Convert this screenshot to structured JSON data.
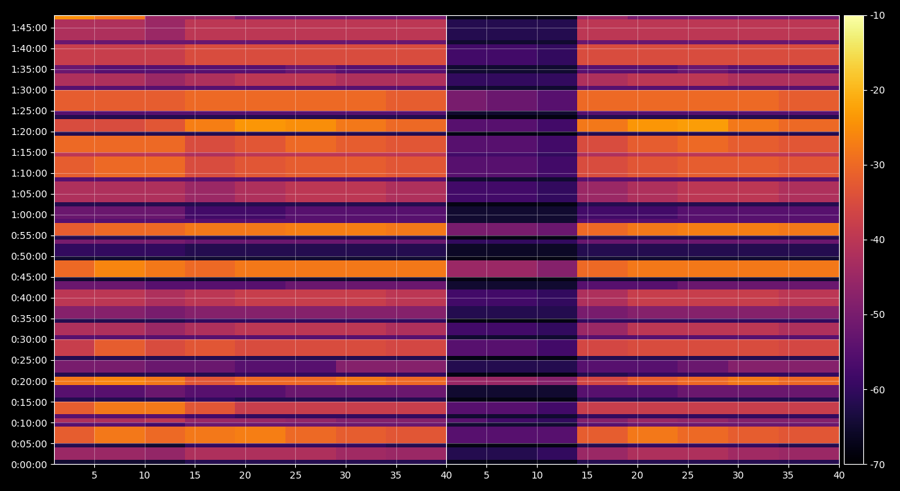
{
  "chart_data": {
    "type": "heatmap",
    "color": "inferno",
    "grid": true,
    "xlim": [
      1,
      40
    ],
    "xticks": [
      5,
      10,
      15,
      20,
      25,
      30,
      35,
      40
    ],
    "ylim": [
      0,
      6480
    ],
    "yticks": [
      {
        "value": 0,
        "label": "0:00:00"
      },
      {
        "value": 300,
        "label": "0:05:00"
      },
      {
        "value": 600,
        "label": "0:10:00"
      },
      {
        "value": 900,
        "label": "0:15:00"
      },
      {
        "value": 1200,
        "label": "0:20:00"
      },
      {
        "value": 1500,
        "label": "0:25:00"
      },
      {
        "value": 1800,
        "label": "0:30:00"
      },
      {
        "value": 2100,
        "label": "0:35:00"
      },
      {
        "value": 2400,
        "label": "0:40:00"
      },
      {
        "value": 2700,
        "label": "0:45:00"
      },
      {
        "value": 3000,
        "label": "0:50:00"
      },
      {
        "value": 3300,
        "label": "0:55:00"
      },
      {
        "value": 3600,
        "label": "1:00:00"
      },
      {
        "value": 3900,
        "label": "1:05:00"
      },
      {
        "value": 4200,
        "label": "1:10:00"
      },
      {
        "value": 4500,
        "label": "1:15:00"
      },
      {
        "value": 4800,
        "label": "1:20:00"
      },
      {
        "value": 5100,
        "label": "1:25:00"
      },
      {
        "value": 5400,
        "label": "1:30:00"
      },
      {
        "value": 5700,
        "label": "1:35:00"
      },
      {
        "value": 6000,
        "label": "1:40:00"
      },
      {
        "value": 6300,
        "label": "1:45:00"
      }
    ],
    "x_edges": [
      1,
      5,
      10,
      14,
      19,
      24,
      29,
      34,
      40
    ],
    "y_edges": [
      0,
      60,
      240,
      300,
      540,
      600,
      660,
      720,
      900,
      960,
      1140,
      1260,
      1320,
      1500,
      1560,
      1800,
      1860,
      2040,
      2100,
      2280,
      2520,
      2640,
      2700,
      2940,
      3000,
      3180,
      3240,
      3300,
      3480,
      3540,
      3720,
      3780,
      4080,
      4140,
      4440,
      4500,
      4740,
      4800,
      4980,
      5040,
      5100,
      5400,
      5460,
      5640,
      5760,
      6060,
      6120,
      6420,
      6480
    ],
    "colorbar": {
      "range": [
        -70,
        -10
      ],
      "ticks": [
        -70,
        -60,
        -50,
        -40,
        -30,
        -20,
        -10
      ]
    },
    "panels": [
      {
        "cells": [
          [
            -65,
            -65,
            -65,
            -62,
            -62,
            -62,
            -62,
            -62
          ],
          [
            -45,
            -45,
            -46,
            -42,
            -42,
            -42,
            -44,
            -45
          ],
          [
            -62,
            -63,
            -65,
            -60,
            -60,
            -60,
            -60,
            -62
          ],
          [
            -32,
            -28,
            -30,
            -28,
            -27,
            -30,
            -32,
            -33
          ],
          [
            -55,
            -55,
            -58,
            -52,
            -52,
            -52,
            -52,
            -52
          ],
          [
            -42,
            -42,
            -40,
            -45,
            -45,
            -46,
            -48,
            -48
          ],
          [
            -55,
            -55,
            -55,
            -58,
            -60,
            -60,
            -60,
            -60
          ],
          [
            -32,
            -28,
            -28,
            -33,
            -38,
            -38,
            -38,
            -38
          ],
          [
            -62,
            -62,
            -62,
            -60,
            -62,
            -62,
            -62,
            -62
          ],
          [
            -55,
            -55,
            -52,
            -55,
            -55,
            -52,
            -52,
            -52
          ],
          [
            -28,
            -26,
            -28,
            -33,
            -30,
            -30,
            -28,
            -30
          ],
          [
            -62,
            -62,
            -62,
            -62,
            -60,
            -60,
            -60,
            -60
          ],
          [
            -50,
            -50,
            -52,
            -52,
            -55,
            -55,
            -48,
            -48
          ],
          [
            -62,
            -62,
            -62,
            -62,
            -62,
            -62,
            -62,
            -62
          ],
          [
            -38,
            -32,
            -35,
            -33,
            -35,
            -35,
            -35,
            -36
          ],
          [
            -55,
            -55,
            -55,
            -55,
            -55,
            -55,
            -55,
            -55
          ],
          [
            -42,
            -42,
            -45,
            -42,
            -40,
            -40,
            -40,
            -42
          ],
          [
            -62,
            -62,
            -62,
            -60,
            -60,
            -60,
            -60,
            -60
          ],
          [
            -48,
            -48,
            -50,
            -48,
            -48,
            -48,
            -48,
            -48
          ],
          [
            -40,
            -40,
            -42,
            -40,
            -38,
            -38,
            -38,
            -40
          ],
          [
            -52,
            -52,
            -55,
            -55,
            -55,
            -52,
            -52,
            -52
          ],
          [
            -65,
            -65,
            -65,
            -65,
            -65,
            -65,
            -65,
            -65
          ],
          [
            -30,
            -26,
            -28,
            -30,
            -28,
            -28,
            -28,
            -28
          ],
          [
            -65,
            -65,
            -65,
            -65,
            -65,
            -65,
            -65,
            -65
          ],
          [
            -60,
            -60,
            -60,
            -62,
            -62,
            -62,
            -62,
            -62
          ],
          [
            -50,
            -50,
            -50,
            -52,
            -52,
            -52,
            -52,
            -52
          ],
          [
            -62,
            -62,
            -62,
            -62,
            -62,
            -62,
            -62,
            -62
          ],
          [
            -32,
            -30,
            -30,
            -28,
            -28,
            -27,
            -27,
            -28
          ],
          [
            -55,
            -55,
            -55,
            -55,
            -55,
            -55,
            -55,
            -55
          ],
          [
            -52,
            -52,
            -52,
            -58,
            -58,
            -55,
            -55,
            -55
          ],
          [
            -62,
            -62,
            -62,
            -62,
            -62,
            -62,
            -62,
            -62
          ],
          [
            -42,
            -42,
            -42,
            -45,
            -42,
            -40,
            -40,
            -42
          ],
          [
            -55,
            -55,
            -55,
            -55,
            -55,
            -55,
            -55,
            -55
          ],
          [
            -32,
            -30,
            -30,
            -35,
            -33,
            -32,
            -32,
            -33
          ],
          [
            -40,
            -40,
            -40,
            -42,
            -40,
            -40,
            -40,
            -40
          ],
          [
            -30,
            -30,
            -30,
            -35,
            -33,
            -30,
            -32,
            -33
          ],
          [
            -62,
            -62,
            -62,
            -62,
            -62,
            -62,
            -62,
            -62
          ],
          [
            -35,
            -35,
            -33,
            -27,
            -24,
            -25,
            -28,
            -30
          ],
          [
            -62,
            -62,
            -62,
            -62,
            -62,
            -62,
            -62,
            -62
          ],
          [
            -55,
            -55,
            -55,
            -55,
            -55,
            -55,
            -55,
            -55
          ],
          [
            -32,
            -32,
            -32,
            -30,
            -30,
            -30,
            -30,
            -32
          ],
          [
            -55,
            -55,
            -55,
            -55,
            -55,
            -55,
            -55,
            -55
          ],
          [
            -42,
            -42,
            -45,
            -42,
            -40,
            -40,
            -42,
            -42
          ],
          [
            -52,
            -55,
            -55,
            -55,
            -55,
            -52,
            -55,
            -55
          ],
          [
            -38,
            -38,
            -38,
            -35,
            -35,
            -35,
            -35,
            -35
          ],
          [
            -52,
            -52,
            -52,
            -52,
            -52,
            -52,
            -52,
            -52
          ],
          [
            -42,
            -42,
            -45,
            -40,
            -40,
            -40,
            -40,
            -40
          ],
          [
            -25,
            -28,
            -45,
            -45,
            -50,
            -50,
            -50,
            -50
          ]
        ]
      },
      {
        "cells": [
          [
            -68,
            -68,
            -68,
            -62,
            -62,
            -62,
            -62,
            -62
          ],
          [
            -62,
            -62,
            -60,
            -45,
            -42,
            -42,
            -44,
            -45
          ],
          [
            -68,
            -68,
            -68,
            -62,
            -60,
            -60,
            -60,
            -62
          ],
          [
            -55,
            -55,
            -55,
            -32,
            -28,
            -30,
            -32,
            -33
          ],
          [
            -65,
            -65,
            -65,
            -55,
            -52,
            -52,
            -52,
            -52
          ],
          [
            -55,
            -58,
            -60,
            -48,
            -45,
            -46,
            -48,
            -48
          ],
          [
            -65,
            -65,
            -65,
            -60,
            -60,
            -60,
            -60,
            -60
          ],
          [
            -55,
            -55,
            -58,
            -38,
            -38,
            -38,
            -38,
            -38
          ],
          [
            -68,
            -68,
            -68,
            -62,
            -62,
            -62,
            -62,
            -62
          ],
          [
            -65,
            -65,
            -65,
            -55,
            -55,
            -52,
            -52,
            -52
          ],
          [
            -45,
            -45,
            -48,
            -36,
            -32,
            -30,
            -28,
            -30
          ],
          [
            -68,
            -68,
            -68,
            -62,
            -60,
            -60,
            -60,
            -60
          ],
          [
            -62,
            -62,
            -62,
            -55,
            -55,
            -52,
            -48,
            -48
          ],
          [
            -68,
            -68,
            -68,
            -62,
            -62,
            -62,
            -62,
            -62
          ],
          [
            -55,
            -55,
            -58,
            -36,
            -35,
            -35,
            -35,
            -36
          ],
          [
            -65,
            -65,
            -65,
            -55,
            -55,
            -55,
            -55,
            -55
          ],
          [
            -58,
            -58,
            -60,
            -45,
            -40,
            -40,
            -40,
            -42
          ],
          [
            -68,
            -68,
            -68,
            -60,
            -60,
            -60,
            -60,
            -60
          ],
          [
            -62,
            -62,
            -62,
            -50,
            -48,
            -48,
            -48,
            -48
          ],
          [
            -58,
            -58,
            -60,
            -42,
            -38,
            -38,
            -38,
            -40
          ],
          [
            -65,
            -65,
            -65,
            -55,
            -55,
            -52,
            -52,
            -52
          ],
          [
            -68,
            -68,
            -68,
            -65,
            -65,
            -65,
            -65,
            -65
          ],
          [
            -45,
            -45,
            -48,
            -30,
            -28,
            -28,
            -28,
            -28
          ],
          [
            -68,
            -68,
            -68,
            -65,
            -65,
            -65,
            -65,
            -65
          ],
          [
            -66,
            -66,
            -66,
            -62,
            -62,
            -62,
            -62,
            -62
          ],
          [
            -60,
            -60,
            -60,
            -52,
            -52,
            -52,
            -52,
            -52
          ],
          [
            -68,
            -68,
            -68,
            -62,
            -62,
            -62,
            -62,
            -62
          ],
          [
            -50,
            -50,
            -52,
            -30,
            -28,
            -27,
            -27,
            -28
          ],
          [
            -65,
            -65,
            -65,
            -55,
            -55,
            -55,
            -55,
            -55
          ],
          [
            -65,
            -65,
            -65,
            -58,
            -58,
            -55,
            -55,
            -55
          ],
          [
            -68,
            -68,
            -68,
            -62,
            -62,
            -62,
            -62,
            -62
          ],
          [
            -58,
            -58,
            -60,
            -45,
            -42,
            -40,
            -40,
            -42
          ],
          [
            -65,
            -65,
            -65,
            -55,
            -55,
            -55,
            -55,
            -55
          ],
          [
            -55,
            -55,
            -58,
            -35,
            -33,
            -32,
            -32,
            -33
          ],
          [
            -58,
            -58,
            -60,
            -42,
            -40,
            -40,
            -40,
            -40
          ],
          [
            -55,
            -55,
            -58,
            -35,
            -32,
            -30,
            -32,
            -33
          ],
          [
            -68,
            -68,
            -68,
            -62,
            -62,
            -62,
            -62,
            -62
          ],
          [
            -55,
            -55,
            -58,
            -28,
            -24,
            -23,
            -28,
            -30
          ],
          [
            -68,
            -68,
            -68,
            -62,
            -62,
            -62,
            -62,
            -62
          ],
          [
            -65,
            -65,
            -65,
            -55,
            -55,
            -55,
            -55,
            -55
          ],
          [
            -50,
            -52,
            -55,
            -30,
            -30,
            -30,
            -30,
            -32
          ],
          [
            -65,
            -65,
            -65,
            -55,
            -55,
            -55,
            -55,
            -55
          ],
          [
            -60,
            -60,
            -60,
            -42,
            -40,
            -40,
            -42,
            -42
          ],
          [
            -65,
            -65,
            -65,
            -55,
            -55,
            -52,
            -55,
            -55
          ],
          [
            -58,
            -58,
            -60,
            -35,
            -35,
            -35,
            -35,
            -35
          ],
          [
            -65,
            -65,
            -65,
            -52,
            -52,
            -52,
            -52,
            -52
          ],
          [
            -62,
            -62,
            -62,
            -40,
            -40,
            -40,
            -40,
            -40
          ],
          [
            -68,
            -68,
            -68,
            -45,
            -50,
            -50,
            -50,
            -50
          ]
        ]
      }
    ]
  }
}
